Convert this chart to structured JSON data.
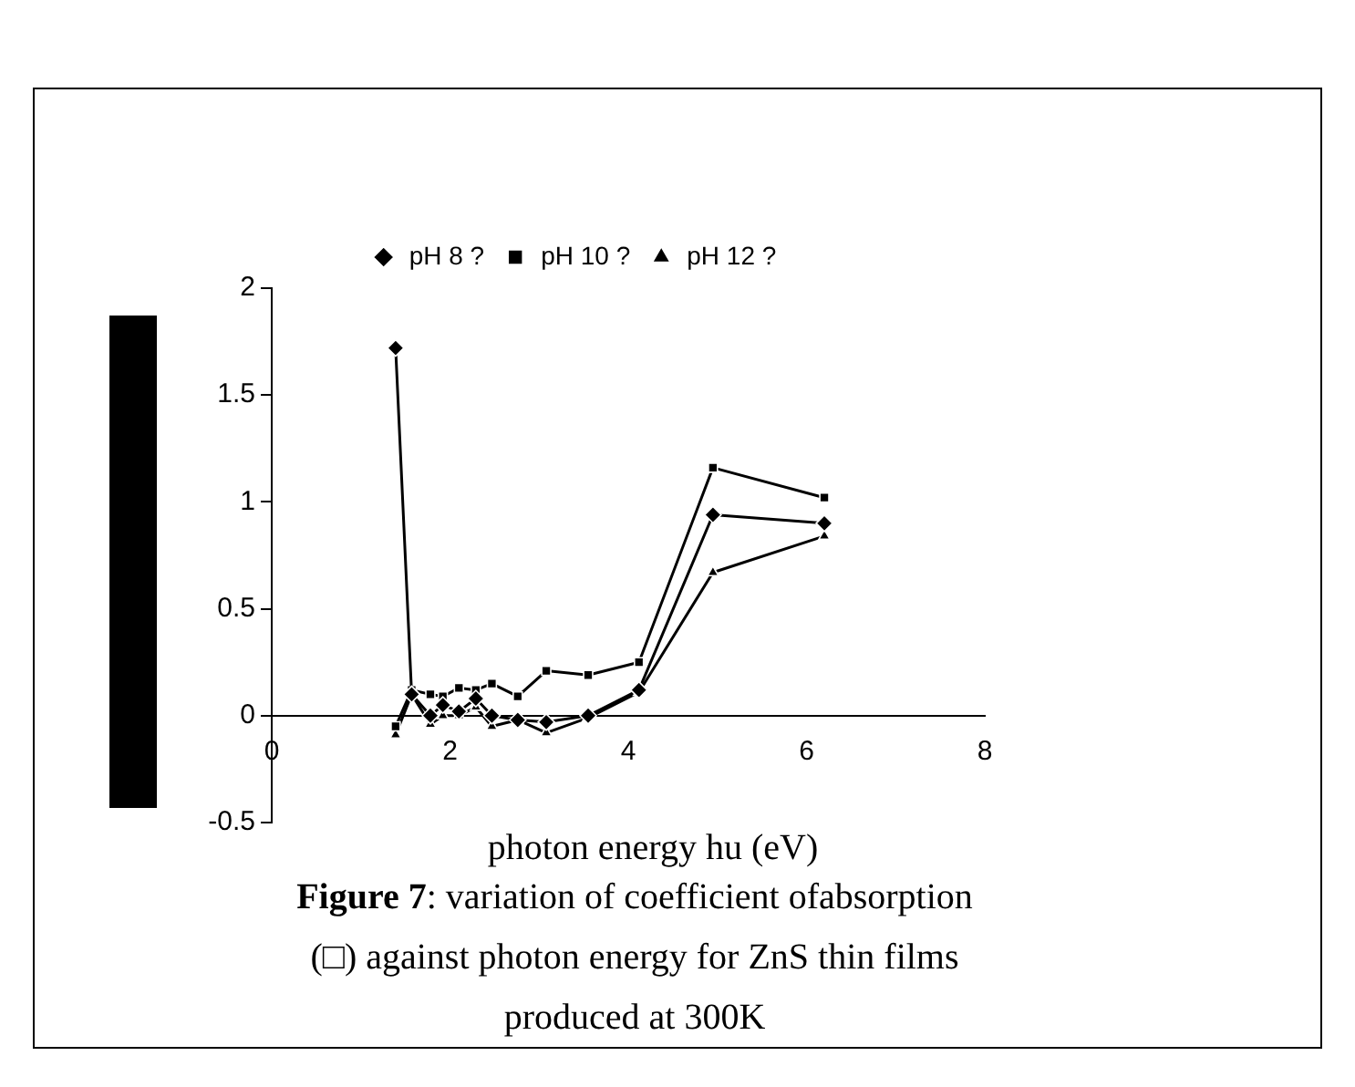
{
  "chart_data": {
    "type": "line",
    "xlabel": "photon energy hu (eV)",
    "annotations": [
      "Figure 7: variation of coefficient ofabsorption (□) against photon energy for ZnS thin films produced at 300K"
    ],
    "x": [
      1.39,
      1.57,
      1.78,
      1.92,
      2.1,
      2.29,
      2.47,
      2.76,
      3.08,
      3.55,
      4.12,
      4.95,
      6.2
    ],
    "series": [
      {
        "name": "pH 8 ?",
        "color": "#000000",
        "marker": "diamond",
        "values": [
          1.72,
          0.1,
          0.0,
          0.05,
          0.02,
          0.08,
          0.0,
          -0.02,
          -0.03,
          0.0,
          0.12,
          0.94,
          0.9
        ]
      },
      {
        "name": "pH 10 ?",
        "color": "#000000",
        "marker": "square",
        "values": [
          -0.05,
          0.12,
          0.1,
          0.09,
          0.13,
          0.12,
          0.15,
          0.09,
          0.21,
          0.19,
          0.25,
          1.16,
          1.02
        ]
      },
      {
        "name": "pH 12 ?",
        "color": "#000000",
        "marker": "triangle",
        "values": [
          -0.09,
          0.1,
          -0.04,
          0.0,
          0.0,
          0.04,
          -0.05,
          -0.02,
          -0.08,
          -0.01,
          0.11,
          0.67,
          0.84
        ]
      }
    ],
    "xlim": [
      0,
      8
    ],
    "xticks": [
      0,
      2,
      4,
      6,
      8
    ],
    "ylim": [
      -0.5,
      2
    ],
    "yticks": [
      -0.5,
      0,
      0.5,
      1,
      1.5,
      2
    ],
    "grid": false,
    "legend": "top",
    "line_style": "solid"
  }
}
